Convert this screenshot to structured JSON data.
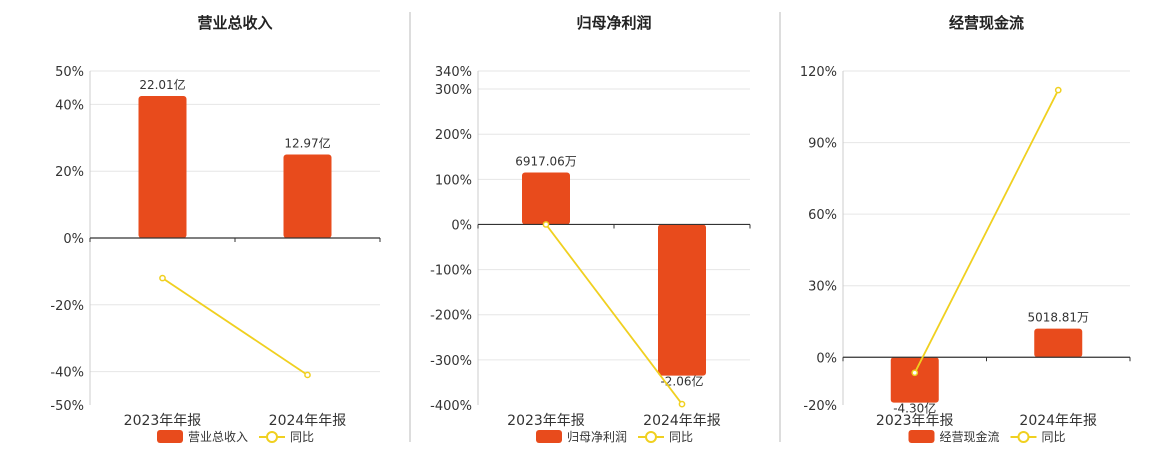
{
  "colors": {
    "bar": "#e84b1c",
    "line": "#f0d020",
    "axis": "#333333",
    "grid": "#e6e6e6",
    "divider": "#bbbbbb"
  },
  "chart_data": [
    {
      "type": "bar",
      "title": "营业总收入",
      "categories": [
        "2023年年报",
        "2024年年报"
      ],
      "ylim": [
        -50,
        50
      ],
      "yticks": [
        50,
        40,
        20,
        0,
        -20,
        -40,
        -50
      ],
      "ytick_labels": [
        "50%",
        "40%",
        "20%",
        "0%",
        "-20%",
        "-40%",
        "-50%"
      ],
      "series": [
        {
          "name": "营业总收入",
          "kind": "bar",
          "values": [
            42.5,
            25.0
          ],
          "labels": [
            "22.01亿",
            "12.97亿"
          ]
        },
        {
          "name": "同比",
          "kind": "line",
          "values": [
            -12.0,
            -41.0
          ]
        }
      ],
      "legend_position": "bottom-center",
      "grid": true
    },
    {
      "type": "bar",
      "title": "归母净利润",
      "categories": [
        "2023年年报",
        "2024年年报"
      ],
      "ylim": [
        -400,
        340
      ],
      "yticks": [
        340,
        300,
        200,
        100,
        0,
        -100,
        -200,
        -300,
        -400
      ],
      "ytick_labels": [
        "340%",
        "300%",
        "200%",
        "100%",
        "0%",
        "-100%",
        "-200%",
        "-300%",
        "-400%"
      ],
      "series": [
        {
          "name": "归母净利润",
          "kind": "bar",
          "values": [
            115,
            -335
          ],
          "labels": [
            "6917.06万",
            "-2.06亿"
          ]
        },
        {
          "name": "同比",
          "kind": "line",
          "values": [
            0,
            -398
          ]
        }
      ],
      "legend_position": "bottom-center",
      "grid": true
    },
    {
      "type": "bar",
      "title": "经营现金流",
      "categories": [
        "2023年年报",
        "2024年年报"
      ],
      "ylim": [
        -20,
        120
      ],
      "yticks": [
        120,
        90,
        60,
        30,
        0,
        -20
      ],
      "ytick_labels": [
        "120%",
        "90%",
        "60%",
        "30%",
        "0%",
        "-20%"
      ],
      "series": [
        {
          "name": "经营现金流",
          "kind": "bar",
          "values": [
            -19,
            12
          ],
          "labels": [
            "-4.30亿",
            "5018.81万"
          ]
        },
        {
          "name": "同比",
          "kind": "line",
          "values": [
            -6.5,
            112
          ]
        }
      ],
      "legend_position": "bottom-center",
      "grid": true
    }
  ]
}
